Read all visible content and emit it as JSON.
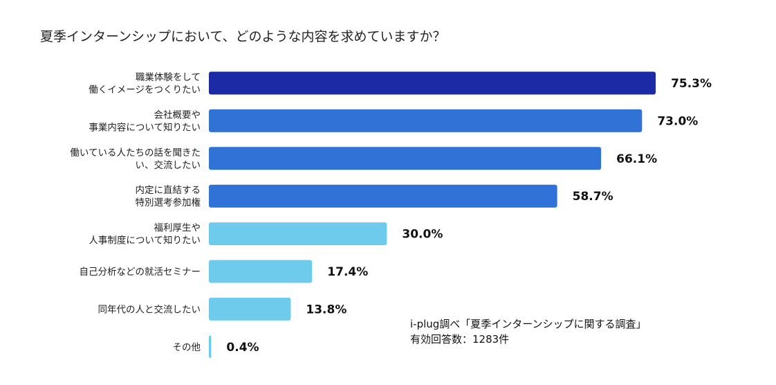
{
  "chart_data": {
    "type": "bar",
    "orientation": "horizontal",
    "title": "夏季インターンシップにおいて、どのような内容を求めていますか？",
    "categories": [
      [
        "職業体験をして",
        "働くイメージをつくりたい"
      ],
      [
        "会社概要や",
        "事業内容について知りたい"
      ],
      [
        "働いている人たちの話を聞きた",
        "い、交流したい"
      ],
      [
        "内定に直結する",
        "特別選考参加権"
      ],
      [
        "福利厚生や",
        "人事制度について知りたい"
      ],
      [
        "自己分析などの就活セミナー"
      ],
      [
        "同年代の人と交流したい"
      ],
      [
        "その他"
      ]
    ],
    "values": [
      75.3,
      73.0,
      66.1,
      58.7,
      30.0,
      17.4,
      13.8,
      0.4
    ],
    "value_labels": [
      "75.3%",
      "73.0%",
      "66.1%",
      "58.7%",
      "30.0%",
      "17.4%",
      "13.8%",
      "0.4%"
    ],
    "bar_colors": [
      "#1c2aa6",
      "#3072d5",
      "#3072d5",
      "#3072d5",
      "#6fcbeb",
      "#6fcbeb",
      "#6fcbeb",
      "#6fcbeb"
    ],
    "xlim": [
      0,
      100
    ],
    "grid": false,
    "xlabel": "",
    "ylabel": ""
  },
  "source_note": {
    "line1": "i-plug調べ「夏季インターンシップに関する調査」",
    "line2": "有効回答数：1283件"
  }
}
